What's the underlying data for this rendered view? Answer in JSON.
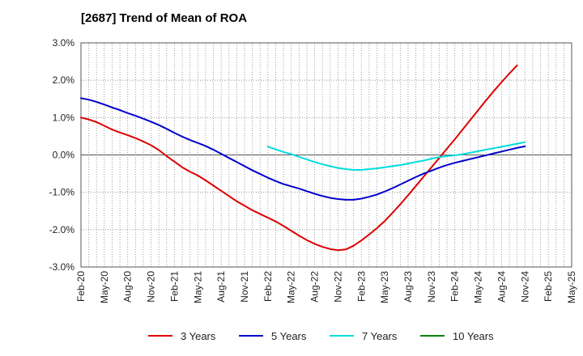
{
  "chart_data": {
    "type": "line",
    "title": "[2687]  Trend of Mean of ROA",
    "xlabel": "",
    "ylabel": "",
    "ylim": [
      -3.0,
      3.0
    ],
    "x_tick_labels": [
      "Feb-20",
      "May-20",
      "Aug-20",
      "Nov-20",
      "Feb-21",
      "May-21",
      "Aug-21",
      "Nov-21",
      "Feb-22",
      "May-22",
      "Aug-22",
      "Nov-22",
      "Feb-23",
      "May-23",
      "Aug-23",
      "Nov-23",
      "Feb-24",
      "May-24",
      "Aug-24",
      "Nov-24",
      "Feb-25",
      "May-25"
    ],
    "y_tick_labels": [
      "3.0%",
      "2.0%",
      "1.0%",
      "0.0%",
      "-1.0%",
      "-2.0%",
      "-3.0%"
    ],
    "y_ticks": [
      3,
      2,
      1,
      0,
      -1,
      -2,
      -3
    ],
    "grid": true,
    "legend_position": "bottom",
    "series": [
      {
        "name": "3 Years",
        "color": "#dd0000",
        "start_index": 0,
        "values": [
          1.0,
          0.95,
          0.88,
          0.78,
          0.68,
          0.6,
          0.53,
          0.45,
          0.36,
          0.26,
          0.13,
          -0.03,
          -0.18,
          -0.33,
          -0.45,
          -0.55,
          -0.68,
          -0.82,
          -0.96,
          -1.1,
          -1.24,
          -1.36,
          -1.48,
          -1.58,
          -1.68,
          -1.78,
          -1.9,
          -2.03,
          -2.16,
          -2.28,
          -2.38,
          -2.46,
          -2.52,
          -2.55,
          -2.53,
          -2.43,
          -2.29,
          -2.13,
          -1.96,
          -1.77,
          -1.55,
          -1.32,
          -1.08,
          -0.83,
          -0.58,
          -0.33,
          -0.08,
          0.17,
          0.42,
          0.68,
          0.94,
          1.2,
          1.46,
          1.71,
          1.95,
          2.18,
          2.4
        ]
      },
      {
        "name": "5 Years",
        "color": "#0000cc",
        "start_index": 0,
        "values": [
          1.52,
          1.48,
          1.42,
          1.35,
          1.27,
          1.2,
          1.12,
          1.05,
          0.97,
          0.89,
          0.8,
          0.7,
          0.59,
          0.49,
          0.4,
          0.32,
          0.24,
          0.14,
          0.03,
          -0.08,
          -0.19,
          -0.3,
          -0.41,
          -0.51,
          -0.61,
          -0.7,
          -0.78,
          -0.84,
          -0.9,
          -0.97,
          -1.04,
          -1.1,
          -1.15,
          -1.18,
          -1.2,
          -1.2,
          -1.17,
          -1.12,
          -1.06,
          -0.98,
          -0.89,
          -0.79,
          -0.69,
          -0.59,
          -0.5,
          -0.42,
          -0.34,
          -0.27,
          -0.21,
          -0.16,
          -0.11,
          -0.06,
          -0.01,
          0.04,
          0.09,
          0.14,
          0.19,
          0.23
        ]
      },
      {
        "name": "7 Years",
        "color": "#00dddd",
        "start_index": 24,
        "values": [
          0.22,
          0.15,
          0.08,
          0.02,
          -0.05,
          -0.12,
          -0.19,
          -0.25,
          -0.3,
          -0.35,
          -0.38,
          -0.4,
          -0.4,
          -0.38,
          -0.36,
          -0.33,
          -0.3,
          -0.27,
          -0.23,
          -0.19,
          -0.15,
          -0.1,
          -0.06,
          -0.03,
          -0.01,
          0.02,
          0.06,
          0.1,
          0.14,
          0.18,
          0.22,
          0.26,
          0.3,
          0.34
        ]
      },
      {
        "name": "10 Years",
        "color": "#008000",
        "start_index": 0,
        "values": []
      }
    ]
  }
}
